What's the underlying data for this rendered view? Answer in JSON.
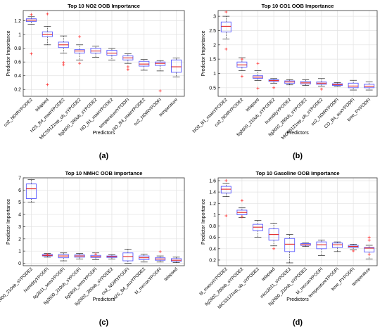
{
  "chart_data": [
    {
      "type": "boxplot",
      "panel_label": "(a)",
      "title": "Top 10 NO2 OOB Importance",
      "xlabel": "Predictors",
      "ylabel": "Predictor Importance",
      "ylim": [
        0.1,
        1.35
      ],
      "yticks": [
        0.2,
        0.4,
        0.6,
        0.8,
        1.0,
        1.2
      ],
      "ytick_labels": [
        "0.2",
        "0.4",
        "0.6",
        "0.8",
        "1",
        "1.2"
      ],
      "grid": true,
      "categories": [
        "co2_NDIRYPODE2",
        "telapsed",
        "H2S_B4_mainYPODE2",
        "MiCS5121wp_ob_sYPODE2",
        "fig2600_280ob_sYPODE2",
        "NO_B1_mainYPODE2",
        "temperatureYPODFI",
        "NO_B4_mainYPODE2",
        "co2_NDIRYPODFI",
        "temperature"
      ],
      "boxes": [
        {
          "min": 1.15,
          "q1": 1.19,
          "median": 1.21,
          "q3": 1.23,
          "max": 1.26,
          "outliers": [
            1.29,
            0.72
          ]
        },
        {
          "min": 0.85,
          "q1": 0.97,
          "median": 1.0,
          "q3": 1.04,
          "max": 1.12,
          "outliers": [
            1.3,
            0.27
          ]
        },
        {
          "min": 0.73,
          "q1": 0.81,
          "median": 0.85,
          "q3": 0.89,
          "max": 0.98,
          "outliers": [
            0.59,
            0.56
          ]
        },
        {
          "min": 0.63,
          "q1": 0.73,
          "median": 0.76,
          "q3": 0.78,
          "max": 0.85,
          "outliers": [
            0.97,
            0.58
          ]
        },
        {
          "min": 0.67,
          "q1": 0.73,
          "median": 0.76,
          "q3": 0.8,
          "max": 0.83,
          "outliers": []
        },
        {
          "min": 0.63,
          "q1": 0.7,
          "median": 0.73,
          "q3": 0.77,
          "max": 0.8,
          "outliers": []
        },
        {
          "min": 0.58,
          "q1": 0.63,
          "median": 0.66,
          "q3": 0.69,
          "max": 0.72,
          "outliers": [
            0.53,
            0.49
          ]
        },
        {
          "min": 0.48,
          "q1": 0.54,
          "median": 0.57,
          "q3": 0.61,
          "max": 0.64,
          "outliers": []
        },
        {
          "min": 0.47,
          "q1": 0.55,
          "median": 0.58,
          "q3": 0.6,
          "max": 0.62,
          "outliers": [
            0.18
          ]
        },
        {
          "min": 0.38,
          "q1": 0.45,
          "median": 0.53,
          "q3": 0.63,
          "max": 0.66,
          "outliers": []
        }
      ]
    },
    {
      "type": "boxplot",
      "panel_label": "(b)",
      "title": "Top 10 CO1 OOB Importance",
      "xlabel": "Predictors",
      "ylabel": "Predictor Importance",
      "ylim": [
        0.2,
        3.2
      ],
      "yticks": [
        0.5,
        1.0,
        1.5,
        2.0,
        2.5,
        3.0
      ],
      "ytick_labels": [
        "0.5",
        "1",
        "1.5",
        "2",
        "2.5",
        "3"
      ],
      "grid": true,
      "categories": [
        "NO3_B1_mainYPODE2",
        "co2_NDIRYPODE2",
        "telapsed",
        "fig2600_210ob_sYPODE2",
        "humidityYPODE2",
        "fig2602_280ob_sYPODE2",
        "MiCS5121wp_ob_sYPODE2",
        "co2_NDIRYPODFI",
        "CO_B4_auxYPODFI",
        "bme_PYPODFI"
      ],
      "boxes": [
        {
          "min": 2.2,
          "q1": 2.45,
          "median": 2.65,
          "q3": 2.8,
          "max": 3.0,
          "outliers": [
            3.15,
            1.85
          ]
        },
        {
          "min": 1.1,
          "q1": 1.22,
          "median": 1.3,
          "q3": 1.4,
          "max": 1.55,
          "outliers": [
            1.5,
            0.9
          ]
        },
        {
          "min": 0.75,
          "q1": 0.83,
          "median": 0.87,
          "q3": 0.92,
          "max": 1.1,
          "outliers": [
            0.48,
            1.35
          ]
        },
        {
          "min": 0.66,
          "q1": 0.72,
          "median": 0.75,
          "q3": 0.78,
          "max": 0.82,
          "outliers": [
            0.5
          ]
        },
        {
          "min": 0.6,
          "q1": 0.65,
          "median": 0.7,
          "q3": 0.74,
          "max": 0.78,
          "outliers": []
        },
        {
          "min": 0.58,
          "q1": 0.63,
          "median": 0.67,
          "q3": 0.72,
          "max": 0.78,
          "outliers": []
        },
        {
          "min": 0.56,
          "q1": 0.62,
          "median": 0.66,
          "q3": 0.7,
          "max": 0.82,
          "outliers": [
            0.45
          ]
        },
        {
          "min": 0.55,
          "q1": 0.58,
          "median": 0.61,
          "q3": 0.64,
          "max": 0.68,
          "outliers": []
        },
        {
          "min": 0.42,
          "q1": 0.5,
          "median": 0.56,
          "q3": 0.66,
          "max": 0.76,
          "outliers": []
        },
        {
          "min": 0.42,
          "q1": 0.5,
          "median": 0.55,
          "q3": 0.62,
          "max": 0.7,
          "outliers": []
        }
      ]
    },
    {
      "type": "boxplot",
      "panel_label": "(c)",
      "title": "Top 10 NMHC OOB Importance",
      "xlabel": "Predictors",
      "ylabel": "Predictor Importance",
      "ylim": [
        -0.2,
        7
      ],
      "yticks": [
        0,
        1,
        2,
        3,
        4,
        5,
        6,
        7
      ],
      "ytick_labels": [
        "0",
        "1",
        "2",
        "3",
        "4",
        "5",
        "6",
        "7"
      ],
      "grid": true,
      "categories": [
        "fig2600_210ob_sYPODE2",
        "humidityYPODFI",
        "fig2611_sensYPODFI",
        "fig2600_210ob_sYPODFI",
        "fig2600_sensYPODFI",
        "fig2602_280ob_sYPODE2",
        "co2_NDIRYPODFI",
        "H2S_B4_auxYPODE2",
        "bl_moconYPODFI",
        "telapsed"
      ],
      "boxes": [
        {
          "min": 5.0,
          "q1": 5.3,
          "median": 6.1,
          "q3": 6.5,
          "max": 6.85,
          "outliers": []
        },
        {
          "min": 0.5,
          "q1": 0.6,
          "median": 0.65,
          "q3": 0.72,
          "max": 0.8,
          "outliers": [
            0.7
          ]
        },
        {
          "min": 0.2,
          "q1": 0.45,
          "median": 0.6,
          "q3": 0.72,
          "max": 0.85,
          "outliers": []
        },
        {
          "min": 0.35,
          "q1": 0.5,
          "median": 0.6,
          "q3": 0.68,
          "max": 0.8,
          "outliers": []
        },
        {
          "min": 0.3,
          "q1": 0.48,
          "median": 0.55,
          "q3": 0.65,
          "max": 0.85,
          "outliers": [
            0.75
          ]
        },
        {
          "min": 0.35,
          "q1": 0.48,
          "median": 0.55,
          "q3": 0.6,
          "max": 0.7,
          "outliers": []
        },
        {
          "min": 0.0,
          "q1": 0.2,
          "median": 0.55,
          "q3": 0.85,
          "max": 1.15,
          "outliers": []
        },
        {
          "min": 0.1,
          "q1": 0.3,
          "median": 0.45,
          "q3": 0.6,
          "max": 0.75,
          "outliers": []
        },
        {
          "min": 0.1,
          "q1": 0.25,
          "median": 0.35,
          "q3": 0.45,
          "max": 0.6,
          "outliers": [
            0.95
          ]
        },
        {
          "min": 0.05,
          "q1": 0.15,
          "median": 0.25,
          "q3": 0.38,
          "max": 0.5,
          "outliers": []
        }
      ]
    },
    {
      "type": "boxplot",
      "panel_label": "(d)",
      "title": "Top 10 Gasoline OOB Importance",
      "xlabel": "Predictors",
      "ylabel": "Predictor Importance",
      "ylim": [
        0.1,
        1.65
      ],
      "yticks": [
        0.2,
        0.4,
        0.6,
        0.8,
        1.0,
        1.2,
        1.4,
        1.6
      ],
      "ytick_labels": [
        "0.2",
        "0.4",
        "0.6",
        "0.8",
        "1",
        "1.2",
        "1.4",
        "1.6"
      ],
      "grid": true,
      "categories": [
        "bl_moconYPODE2",
        "fig2602_280ob_sYPODE2",
        "MiCS5121wp_ob_sYPODE2",
        "telapsed",
        "mics2611_sYPODE2",
        "fig2600_210ob_sYPODE2",
        "bl_moconYPODFI",
        "temperatureYPODFI",
        "bme_PYPODFI",
        "temperature"
      ],
      "boxes": [
        {
          "min": 1.32,
          "q1": 1.38,
          "median": 1.45,
          "q3": 1.5,
          "max": 1.55,
          "outliers": [
            1.6,
            0.98
          ]
        },
        {
          "min": 0.95,
          "q1": 1.0,
          "median": 1.04,
          "q3": 1.08,
          "max": 1.12,
          "outliers": [
            1.25,
            0.96
          ]
        },
        {
          "min": 0.6,
          "q1": 0.72,
          "median": 0.78,
          "q3": 0.83,
          "max": 0.9,
          "outliers": []
        },
        {
          "min": 0.45,
          "q1": 0.55,
          "median": 0.65,
          "q3": 0.75,
          "max": 0.85,
          "outliers": [
            0.4
          ]
        },
        {
          "min": 0.15,
          "q1": 0.35,
          "median": 0.48,
          "q3": 0.58,
          "max": 0.65,
          "outliers": []
        },
        {
          "min": 0.44,
          "q1": 0.46,
          "median": 0.47,
          "q3": 0.49,
          "max": 0.5,
          "outliers": []
        },
        {
          "min": 0.28,
          "q1": 0.4,
          "median": 0.47,
          "q3": 0.52,
          "max": 0.55,
          "outliers": []
        },
        {
          "min": 0.35,
          "q1": 0.42,
          "median": 0.47,
          "q3": 0.5,
          "max": 0.52,
          "outliers": []
        },
        {
          "min": 0.38,
          "q1": 0.42,
          "median": 0.44,
          "q3": 0.46,
          "max": 0.48,
          "outliers": [
            0.36
          ]
        },
        {
          "min": 0.22,
          "q1": 0.34,
          "median": 0.41,
          "q3": 0.42,
          "max": 0.46,
          "outliers": [
            0.6,
            0.55,
            0.3
          ]
        }
      ]
    }
  ],
  "colors": {
    "box": "#5b5bff",
    "median": "#e01010",
    "whisker": "#222222",
    "outlier": "#ff3333",
    "grid": "#e2e2e2",
    "axis": "#333333",
    "text": "#000000"
  }
}
